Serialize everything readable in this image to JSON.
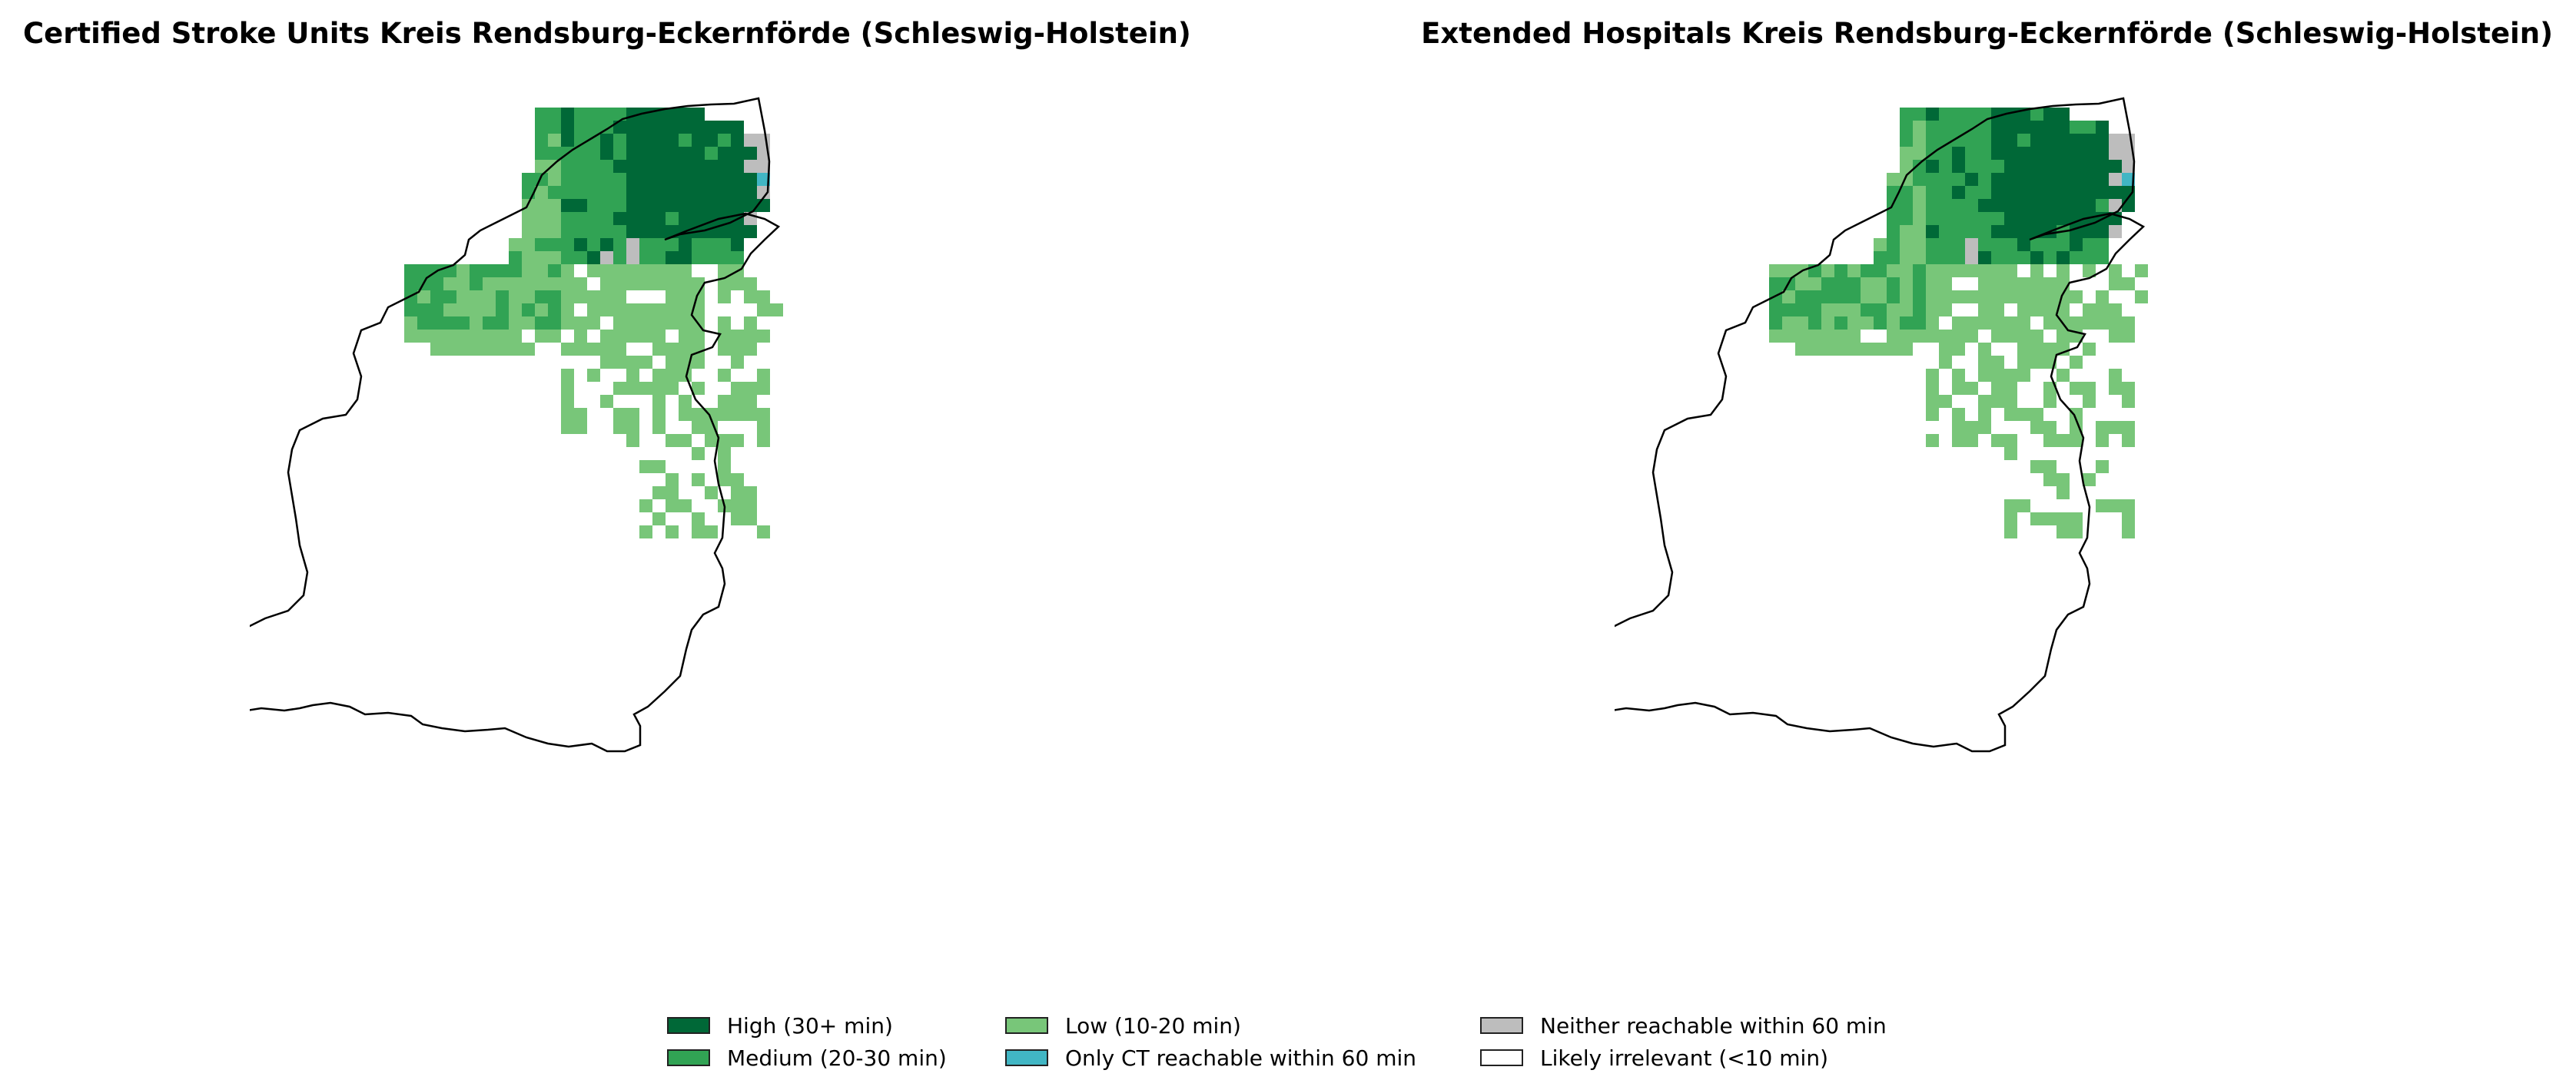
{
  "panels": {
    "left": {
      "title": "Certified Stroke Units Kreis Rendsburg-Eckernförde (Schleswig-Holstein)"
    },
    "right": {
      "title": "Extended Hospitals Kreis Rendsburg-Eckernförde (Schleswig-Holstein)"
    }
  },
  "legend": {
    "items": [
      {
        "label": "High (30+ min)",
        "color": "#006837"
      },
      {
        "label": "Medium (20-30 min)",
        "color": "#31a354"
      },
      {
        "label": "Low (10-20 min)",
        "color": "#78c679"
      },
      {
        "label": "Only CT reachable within 60 min",
        "color": "#41b6c4"
      },
      {
        "label": "Neither reachable within 60 min",
        "color": "#bdbdbd"
      },
      {
        "label": "Likely irrelevant (<10 min)",
        "color": "#ffffff"
      }
    ]
  }
}
